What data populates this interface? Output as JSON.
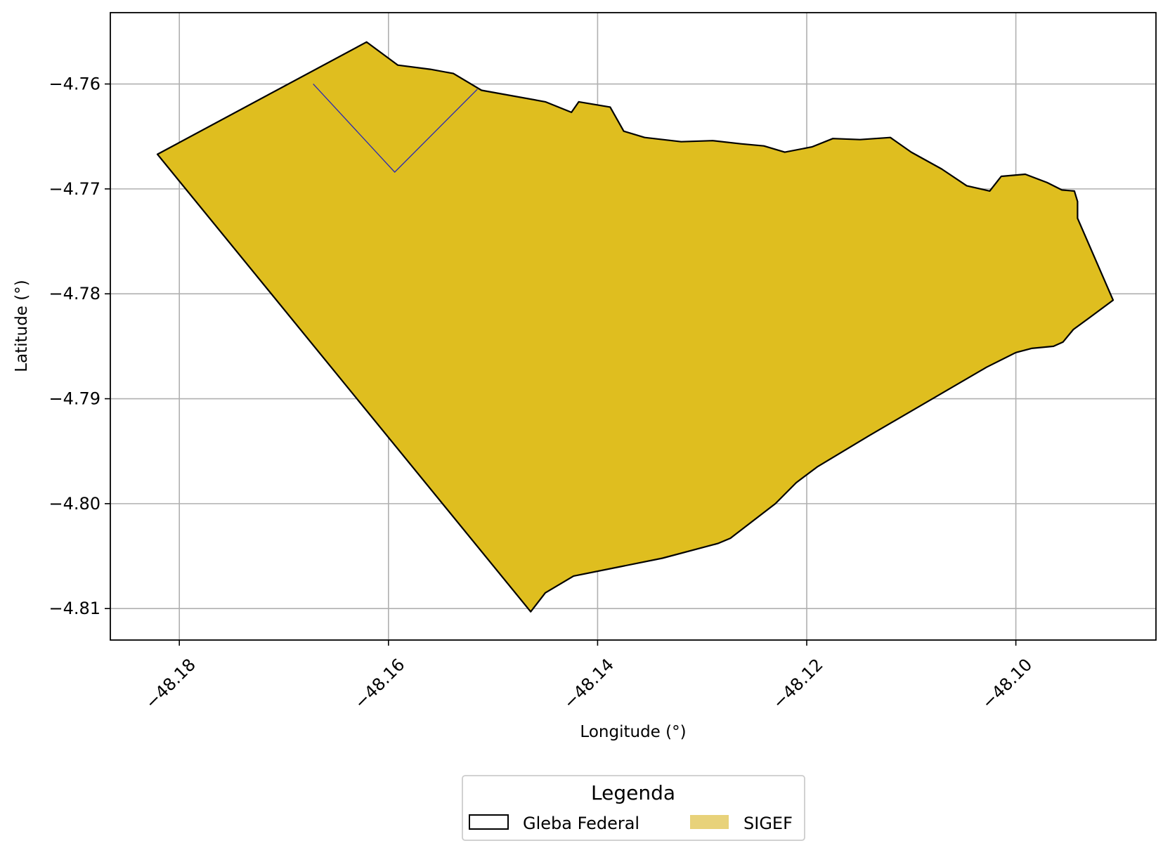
{
  "chart_data": {
    "type": "map",
    "xlabel": "Longitude (°)",
    "ylabel": "Latitude (°)",
    "xlim": [
      -48.1866,
      -48.0866
    ],
    "ylim": [
      -4.813,
      -4.7532
    ],
    "x_ticks": [
      {
        "value": -48.18,
        "label": "−48.18"
      },
      {
        "value": -48.16,
        "label": "−48.16"
      },
      {
        "value": -48.14,
        "label": "−48.14"
      },
      {
        "value": -48.12,
        "label": "−48.12"
      },
      {
        "value": -48.1,
        "label": "−48.10"
      }
    ],
    "y_ticks": [
      {
        "value": -4.76,
        "label": "−4.76"
      },
      {
        "value": -4.77,
        "label": "−4.77"
      },
      {
        "value": -4.78,
        "label": "−4.78"
      },
      {
        "value": -4.79,
        "label": "−4.79"
      },
      {
        "value": -4.8,
        "label": "−4.80"
      },
      {
        "value": -4.81,
        "label": "−4.81"
      }
    ],
    "grid": true,
    "legend": {
      "title": "Legenda",
      "placement": "bottom-center-outside",
      "entries": [
        {
          "label": "Gleba Federal",
          "style": "outline",
          "color": "#000000"
        },
        {
          "label": "SIGEF",
          "style": "fill",
          "color": "#e8d27a"
        }
      ]
    },
    "series": [
      {
        "name": "Gleba Federal",
        "type": "polygon",
        "fill": "#dfbe1f",
        "stroke": "#000000",
        "coordinates": [
          [
            -48.1821,
            -4.7667
          ],
          [
            -48.1621,
            -4.756
          ],
          [
            -48.1591,
            -4.7582
          ],
          [
            -48.156,
            -4.7586
          ],
          [
            -48.1538,
            -4.759
          ],
          [
            -48.1511,
            -4.7606
          ],
          [
            -48.145,
            -4.7617
          ],
          [
            -48.1425,
            -4.7627
          ],
          [
            -48.1418,
            -4.7617
          ],
          [
            -48.1388,
            -4.7622
          ],
          [
            -48.1375,
            -4.7645
          ],
          [
            -48.1355,
            -4.7651
          ],
          [
            -48.132,
            -4.7655
          ],
          [
            -48.129,
            -4.7654
          ],
          [
            -48.1263,
            -4.7657
          ],
          [
            -48.1241,
            -4.7659
          ],
          [
            -48.1221,
            -4.7665
          ],
          [
            -48.1195,
            -4.766
          ],
          [
            -48.1175,
            -4.7652
          ],
          [
            -48.1149,
            -4.7653
          ],
          [
            -48.112,
            -4.7651
          ],
          [
            -48.11,
            -4.7665
          ],
          [
            -48.1071,
            -4.7681
          ],
          [
            -48.1047,
            -4.7697
          ],
          [
            -48.1025,
            -4.7702
          ],
          [
            -48.1014,
            -4.7688
          ],
          [
            -48.0991,
            -4.7686
          ],
          [
            -48.097,
            -4.7694
          ],
          [
            -48.0956,
            -4.7701
          ],
          [
            -48.0944,
            -4.7702
          ],
          [
            -48.0941,
            -4.7712
          ],
          [
            -48.0941,
            -4.7728
          ],
          [
            -48.0907,
            -4.7806
          ],
          [
            -48.093,
            -4.7823
          ],
          [
            -48.0945,
            -4.7834
          ],
          [
            -48.0955,
            -4.7846
          ],
          [
            -48.0964,
            -4.785
          ],
          [
            -48.0985,
            -4.7852
          ],
          [
            -48.1,
            -4.7856
          ],
          [
            -48.1028,
            -4.787
          ],
          [
            -48.114,
            -4.7935
          ],
          [
            -48.119,
            -4.7965
          ],
          [
            -48.121,
            -4.798
          ],
          [
            -48.123,
            -4.8
          ],
          [
            -48.1273,
            -4.8033
          ],
          [
            -48.1285,
            -4.8038
          ],
          [
            -48.1338,
            -4.8052
          ],
          [
            -48.1378,
            -4.806
          ],
          [
            -48.1423,
            -4.8069
          ],
          [
            -48.145,
            -4.8085
          ],
          [
            -48.1464,
            -4.8103
          ],
          [
            -48.1821,
            -4.7667
          ]
        ]
      },
      {
        "name": "SIGEF",
        "type": "line",
        "stroke": "#2b2bb0",
        "coordinates": [
          [
            -48.1672,
            -4.76
          ],
          [
            -48.1594,
            -4.7684
          ],
          [
            -48.1515,
            -4.7605
          ]
        ]
      }
    ]
  }
}
